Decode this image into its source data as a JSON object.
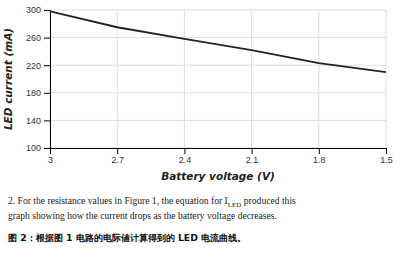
{
  "chart_data": {
    "type": "line",
    "x": [
      3.0,
      2.7,
      2.4,
      2.1,
      1.8,
      1.5
    ],
    "values": [
      298,
      275,
      258,
      242,
      223,
      210
    ],
    "color": "#222222",
    "xlim": [
      3.0,
      1.5
    ],
    "xticks": [
      3,
      2.7,
      2.4,
      2.1,
      1.8,
      1.5
    ],
    "ylim": [
      100,
      300
    ],
    "yticks": [
      100,
      140,
      180,
      220,
      260,
      300
    ],
    "xlabel": "Battery voltage (V)",
    "ylabel": "LED current (mA)",
    "grid": true,
    "annotations": [
      "2. For the resistance values in Figure 1, the equation for I",
      "LED",
      " produced this",
      "graph showing how the current drops as the battery voltage decreases.",
      "图 2：根据图 1 电路的电际値计算得到的 LED 电流曲线。"
    ]
  }
}
